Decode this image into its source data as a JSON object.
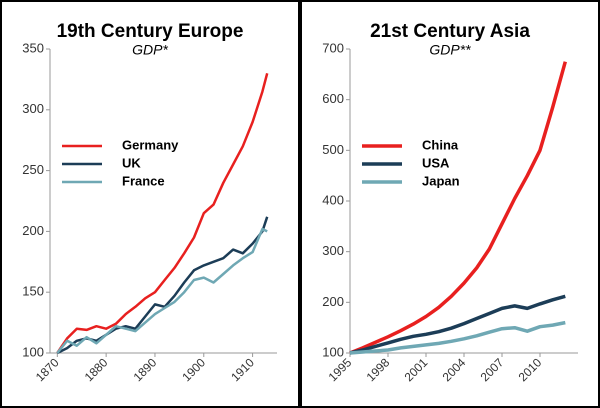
{
  "chart_data": [
    {
      "type": "line",
      "title": "19th Century Europe",
      "subtitle": "GDP*",
      "x": [
        1870,
        1872,
        1874,
        1876,
        1878,
        1880,
        1882,
        1884,
        1886,
        1888,
        1890,
        1892,
        1894,
        1896,
        1898,
        1900,
        1902,
        1904,
        1906,
        1908,
        1910,
        1912,
        1913
      ],
      "series": [
        {
          "name": "Germany",
          "color": "#e8201f",
          "values": [
            100,
            112,
            120,
            119,
            122,
            120,
            124,
            132,
            138,
            145,
            150,
            160,
            170,
            182,
            195,
            215,
            222,
            240,
            255,
            270,
            290,
            315,
            330
          ]
        },
        {
          "name": "UK",
          "color": "#1c3d57",
          "values": [
            100,
            104,
            110,
            112,
            110,
            115,
            120,
            122,
            120,
            130,
            140,
            138,
            147,
            158,
            168,
            172,
            175,
            178,
            185,
            182,
            190,
            200,
            212
          ]
        },
        {
          "name": "France",
          "color": "#6fa8b4",
          "values": [
            100,
            110,
            106,
            113,
            108,
            115,
            122,
            120,
            118,
            125,
            132,
            137,
            142,
            150,
            160,
            162,
            158,
            165,
            172,
            178,
            183,
            202,
            200
          ]
        }
      ],
      "xlim": [
        1868.5,
        1915
      ],
      "xticks": [
        1870,
        1880,
        1890,
        1900,
        1910
      ],
      "ylim": [
        100,
        350
      ],
      "yticks": [
        100,
        150,
        200,
        250,
        300,
        350
      ],
      "legend": "center left"
    },
    {
      "type": "line",
      "title": "21st Century Asia",
      "subtitle": "GDP**",
      "x": [
        1995,
        1996,
        1997,
        1998,
        1999,
        2000,
        2001,
        2002,
        2003,
        2004,
        2005,
        2006,
        2007,
        2008,
        2009,
        2010,
        2011,
        2012
      ],
      "series": [
        {
          "name": "China",
          "color": "#e8201f",
          "values": [
            100,
            110,
            121,
            132,
            144,
            157,
            172,
            190,
            212,
            238,
            268,
            305,
            355,
            405,
            450,
            500,
            585,
            675
          ]
        },
        {
          "name": "USA",
          "color": "#1c3d57",
          "values": [
            100,
            106,
            113,
            120,
            127,
            133,
            137,
            142,
            149,
            158,
            168,
            178,
            188,
            193,
            188,
            197,
            205,
            212
          ]
        },
        {
          "name": "Japan",
          "color": "#6fa8b4",
          "values": [
            100,
            102,
            104,
            106,
            110,
            113,
            116,
            119,
            123,
            128,
            134,
            141,
            148,
            150,
            143,
            152,
            155,
            160
          ]
        }
      ],
      "xlim": [
        1995,
        2013
      ],
      "xticks": [
        1995,
        1998,
        2001,
        2004,
        2007,
        2010
      ],
      "ylim": [
        100,
        700
      ],
      "yticks": [
        100,
        200,
        300,
        400,
        500,
        600,
        700
      ],
      "legend": "center left"
    }
  ]
}
